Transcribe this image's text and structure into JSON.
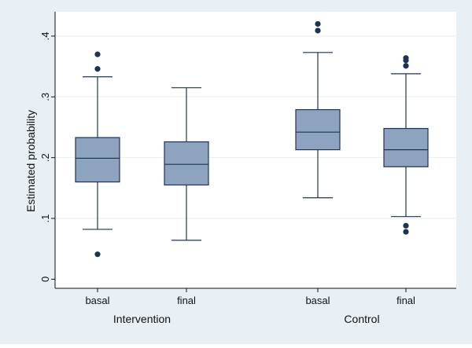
{
  "chart_data": {
    "type": "box",
    "title": "",
    "xlabel": "",
    "ylabel": "Estimated probability",
    "ylim": [
      -0.015,
      0.44
    ],
    "yticks": [
      0,
      0.1,
      0.2,
      0.3,
      0.4
    ],
    "ytick_labels": [
      "0",
      ".1",
      ".2",
      ".3",
      ".4"
    ],
    "grid": true,
    "groups": [
      {
        "label": "Intervention",
        "boxes": [
          {
            "label": "basal",
            "whisker_low": 0.082,
            "q1": 0.16,
            "median": 0.199,
            "q3": 0.233,
            "whisker_high": 0.333,
            "outliers": [
              0.041,
              0.346,
              0.37
            ]
          },
          {
            "label": "final",
            "whisker_low": 0.064,
            "q1": 0.155,
            "median": 0.189,
            "q3": 0.226,
            "whisker_high": 0.315,
            "outliers": []
          }
        ]
      },
      {
        "label": "Control",
        "boxes": [
          {
            "label": "basal",
            "whisker_low": 0.134,
            "q1": 0.213,
            "median": 0.242,
            "q3": 0.279,
            "whisker_high": 0.373,
            "outliers": [
              0.409,
              0.42
            ]
          },
          {
            "label": "final",
            "whisker_low": 0.103,
            "q1": 0.185,
            "median": 0.213,
            "q3": 0.248,
            "whisker_high": 0.338,
            "outliers": [
              0.078,
              0.088,
              0.351,
              0.36,
              0.364
            ]
          }
        ]
      }
    ],
    "colors": {
      "outer_background": "#e9f0f5",
      "plot_background": "#ffffff",
      "grid": "#e6eef3",
      "box_fill": "#8ea3bf",
      "box_stroke": "#1c3555",
      "whisker": "#1c3555",
      "outlier": "#1c3555",
      "axis": "#111111"
    }
  }
}
